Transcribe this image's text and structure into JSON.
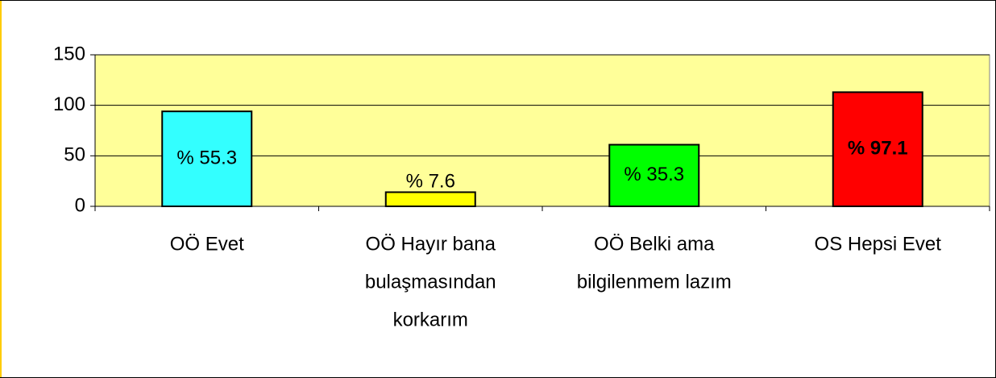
{
  "chart_data": {
    "type": "bar",
    "categories": [
      [
        "OÖ Evet"
      ],
      [
        "OÖ Hayır bana",
        "bulaşmasından",
        "korkarım"
      ],
      [
        "OÖ Belki ama",
        "bilgilenmem lazım"
      ],
      [
        "OS Hepsi  Evet"
      ]
    ],
    "values": [
      94,
      14,
      61,
      113
    ],
    "annotations": [
      "% 55.3",
      "% 7.6",
      "% 35.3",
      "% 97.1"
    ],
    "annotation_bold": [
      false,
      false,
      false,
      true
    ],
    "colors": [
      "#33ffff",
      "#ffff00",
      "#00ff00",
      "#ff0000"
    ],
    "plot_background": "#ffff99",
    "ylim": [
      0,
      150
    ],
    "yticks": [
      0,
      50,
      100,
      150
    ],
    "grid": true
  }
}
